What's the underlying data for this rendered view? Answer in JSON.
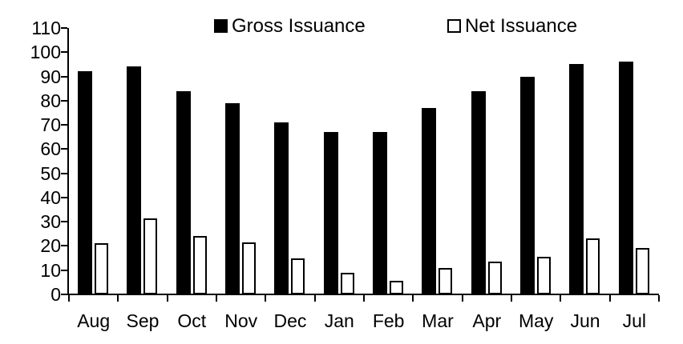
{
  "chart_data": {
    "type": "bar",
    "title": "",
    "xlabel": "",
    "ylabel": "",
    "categories": [
      "Aug",
      "Sep",
      "Oct",
      "Nov",
      "Dec",
      "Jan",
      "Feb",
      "Mar",
      "Apr",
      "May",
      "Jun",
      "Jul"
    ],
    "series": [
      {
        "name": "Gross Issuance",
        "values": [
          92,
          94,
          84,
          79,
          71,
          67,
          67,
          77,
          84,
          90,
          95,
          96
        ],
        "fill": "#000000",
        "border": "#000000"
      },
      {
        "name": "Net Issuance",
        "values": [
          21,
          31.5,
          24,
          21.5,
          15,
          9,
          5.5,
          11,
          13.5,
          15.5,
          23,
          19
        ],
        "fill": "#ffffff",
        "border": "#000000"
      }
    ],
    "ylim": [
      0,
      110
    ],
    "y_ticks": [
      0,
      10,
      20,
      30,
      40,
      50,
      60,
      70,
      80,
      90,
      100,
      110
    ],
    "grid": false,
    "legend_position": "top"
  },
  "legend": {
    "items": [
      {
        "label": "Gross Issuance",
        "swatch": "filled-black-square"
      },
      {
        "label": "Net Issuance",
        "swatch": "outlined-white-square"
      }
    ]
  },
  "colors": {
    "background": "#ffffff",
    "axis": "#000000",
    "text": "#000000",
    "gross_fill": "#000000",
    "net_fill": "#ffffff",
    "net_border": "#000000"
  }
}
